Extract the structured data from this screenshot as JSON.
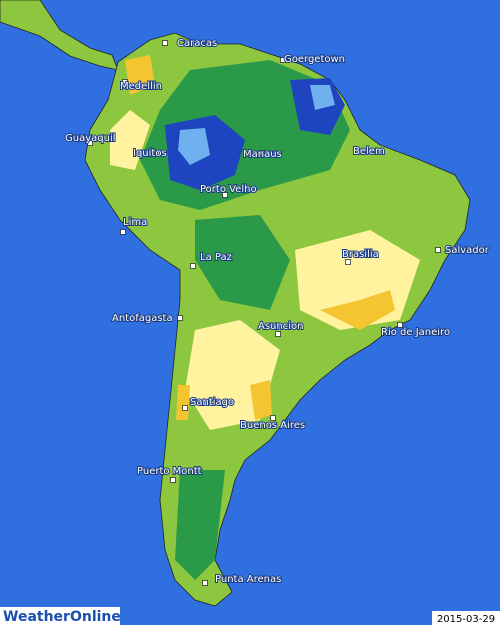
{
  "map": {
    "cities": [
      "Caracas",
      "Goergetown",
      "Medellin",
      "Guayaquil",
      "Iquitos",
      "Manaus",
      "Belem",
      "Porto Velho",
      "Salvador",
      "Lima",
      "Brasilia",
      "La Paz",
      "Antofagasta",
      "Asuncion",
      "Rio de Janeiro",
      "Santiago",
      "Buenos Aires",
      "Puerto Montt",
      "Punta Arenas"
    ],
    "logo": "WeatherOnline",
    "date": "2015-03-29"
  }
}
